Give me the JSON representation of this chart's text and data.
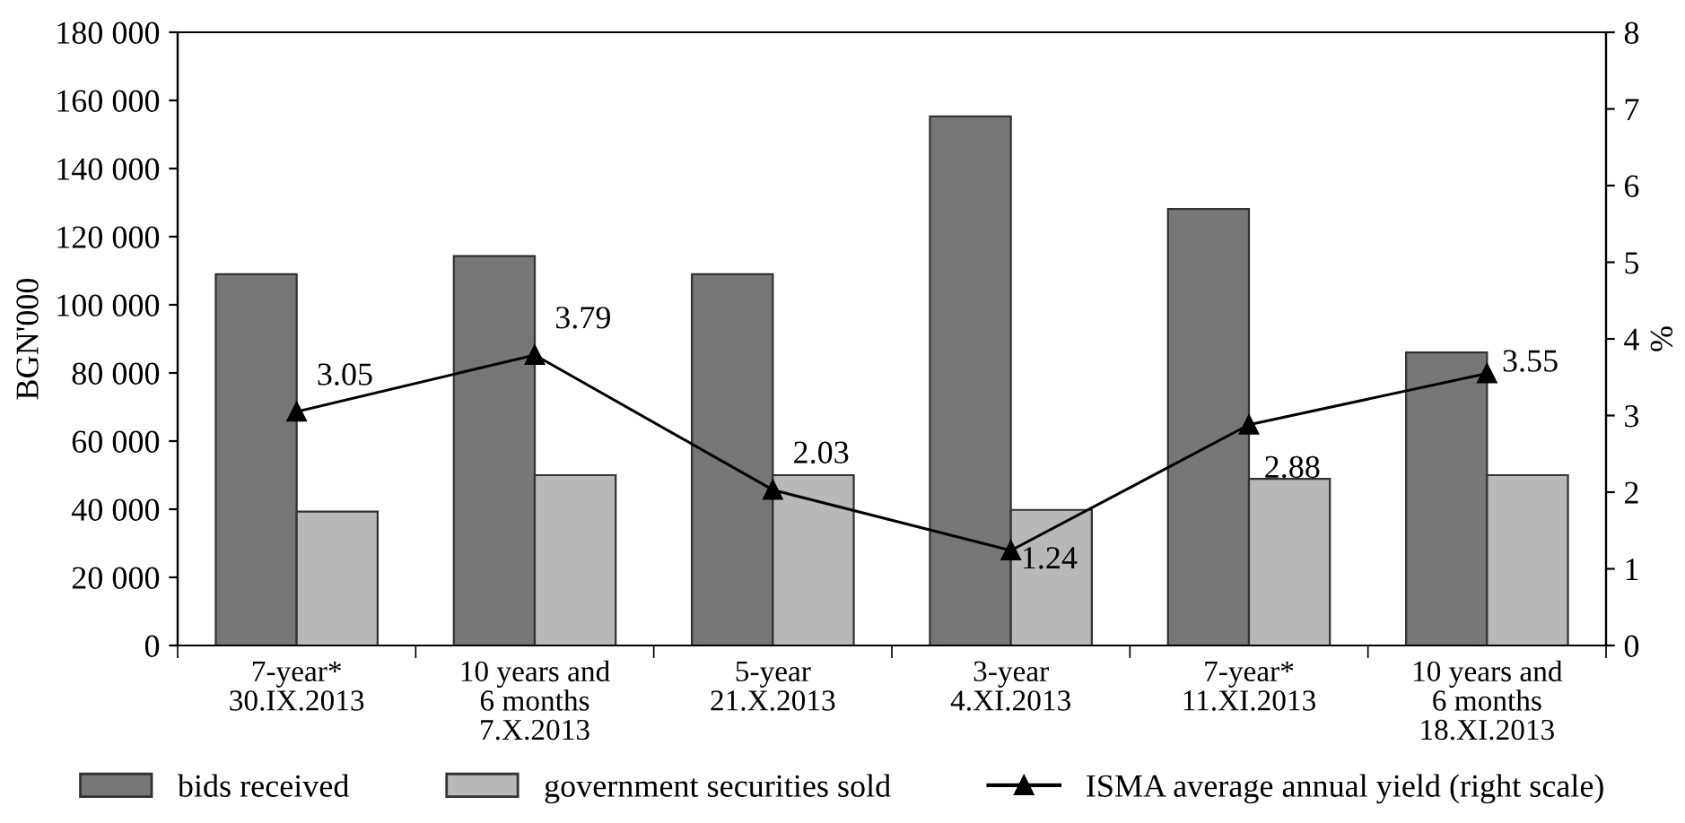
{
  "chart_data": {
    "type": "bar",
    "ylabel": "BGN'000",
    "y2label": "%",
    "categories": [
      "7-year*\n30.IX.2013",
      "10 years and\n6 months\n7.X.2013",
      "5-year\n21.X.2013",
      "3-year\n4.XI.2013",
      "7-year*\n11.XI.2013",
      "10 years and\n6 months\n18.XI.2013"
    ],
    "series": [
      {
        "name": "bids received",
        "color": "#767876",
        "values": [
          109000,
          114300,
          109000,
          155300,
          128100,
          86000
        ]
      },
      {
        "name": "government securities sold",
        "color": "#b6b8b9",
        "values": [
          39300,
          50000,
          50000,
          39800,
          48900,
          50000
        ]
      },
      {
        "name": "ISMA average annual yield (right scale)",
        "type": "line",
        "axis": "y2",
        "color": "#000000",
        "marker": "triangle",
        "values": [
          3.05,
          3.79,
          2.03,
          1.24,
          2.88,
          3.55
        ],
        "data_labels": true
      }
    ],
    "ylim": [
      0,
      180000
    ],
    "yticks": [
      0,
      {
        "value": 20000,
        "label": "20 000"
      },
      {
        "value": 40000,
        "label": "40 000"
      },
      {
        "value": 60000,
        "label": "60 000"
      },
      {
        "value": 80000,
        "label": "80 000"
      },
      {
        "value": 100000,
        "label": "100 000"
      },
      {
        "value": 120000,
        "label": "120 000"
      },
      {
        "value": 140000,
        "label": "140 000"
      },
      {
        "value": 160000,
        "label": "160 000"
      },
      {
        "value": 180000,
        "label": "180 000"
      }
    ],
    "y2lim": [
      0,
      8
    ],
    "y2ticks": [
      0,
      1,
      2,
      3,
      4,
      5,
      6,
      7,
      8
    ],
    "legend": "bottom",
    "grid": false
  }
}
